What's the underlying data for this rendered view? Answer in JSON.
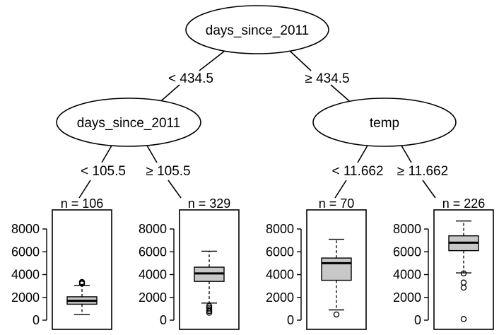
{
  "tree": {
    "root": {
      "label": "days_since_2011",
      "left_edge": "< 434.5",
      "right_edge": "≥ 434.5"
    },
    "left_node": {
      "label": "days_since_2011",
      "left_edge": "< 105.5",
      "right_edge": "≥ 105.5"
    },
    "right_node": {
      "label": "temp",
      "left_edge": "< 11.662",
      "right_edge": "≥ 11.662"
    },
    "y_ticks": [
      "8000",
      "6000",
      "4000",
      "2000",
      "0"
    ],
    "leaves": [
      {
        "n_label": "n = 106",
        "ymin": 500,
        "q1": 1400,
        "median": 1700,
        "q3": 2050,
        "ymax": 3050,
        "outliers": [
          3200,
          3300,
          3350
        ]
      },
      {
        "n_label": "n = 329",
        "ymin": 1500,
        "q1": 3400,
        "median": 4100,
        "q3": 4650,
        "ymax": 6050,
        "outliers": [
          650,
          800,
          950,
          1100,
          1250
        ]
      },
      {
        "n_label": "n = 70",
        "ymin": 900,
        "q1": 3500,
        "median": 5000,
        "q3": 5450,
        "ymax": 7100,
        "outliers": [
          500
        ]
      },
      {
        "n_label": "n = 226",
        "ymin": 4150,
        "q1": 6100,
        "median": 6800,
        "q3": 7400,
        "ymax": 8700,
        "outliers": [
          100,
          2850,
          3300,
          4100
        ]
      }
    ]
  }
}
